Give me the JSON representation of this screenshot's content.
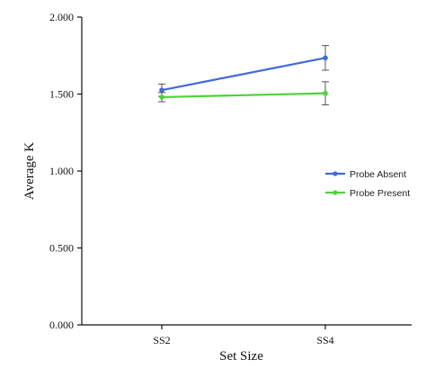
{
  "chart_data": {
    "type": "line",
    "categories": [
      "SS2",
      "SS4"
    ],
    "series": [
      {
        "name": "Probe Absent",
        "color": "#4169d8",
        "values": [
          1.525,
          1.735
        ],
        "error": [
          0.04,
          0.08
        ]
      },
      {
        "name": "Probe Present",
        "color": "#4ed33c",
        "values": [
          1.48,
          1.505
        ],
        "error": [
          0.03,
          0.075
        ]
      }
    ],
    "xlabel": "Set Size",
    "ylabel": "Average K",
    "ylim": [
      0,
      2
    ],
    "yticks": [
      0,
      0.5,
      1,
      1.5,
      2
    ],
    "ytick_labels": [
      "0.000",
      "0.500",
      "1.000",
      "1.500",
      "2.000"
    ],
    "grid": false,
    "legend_position": "right"
  }
}
